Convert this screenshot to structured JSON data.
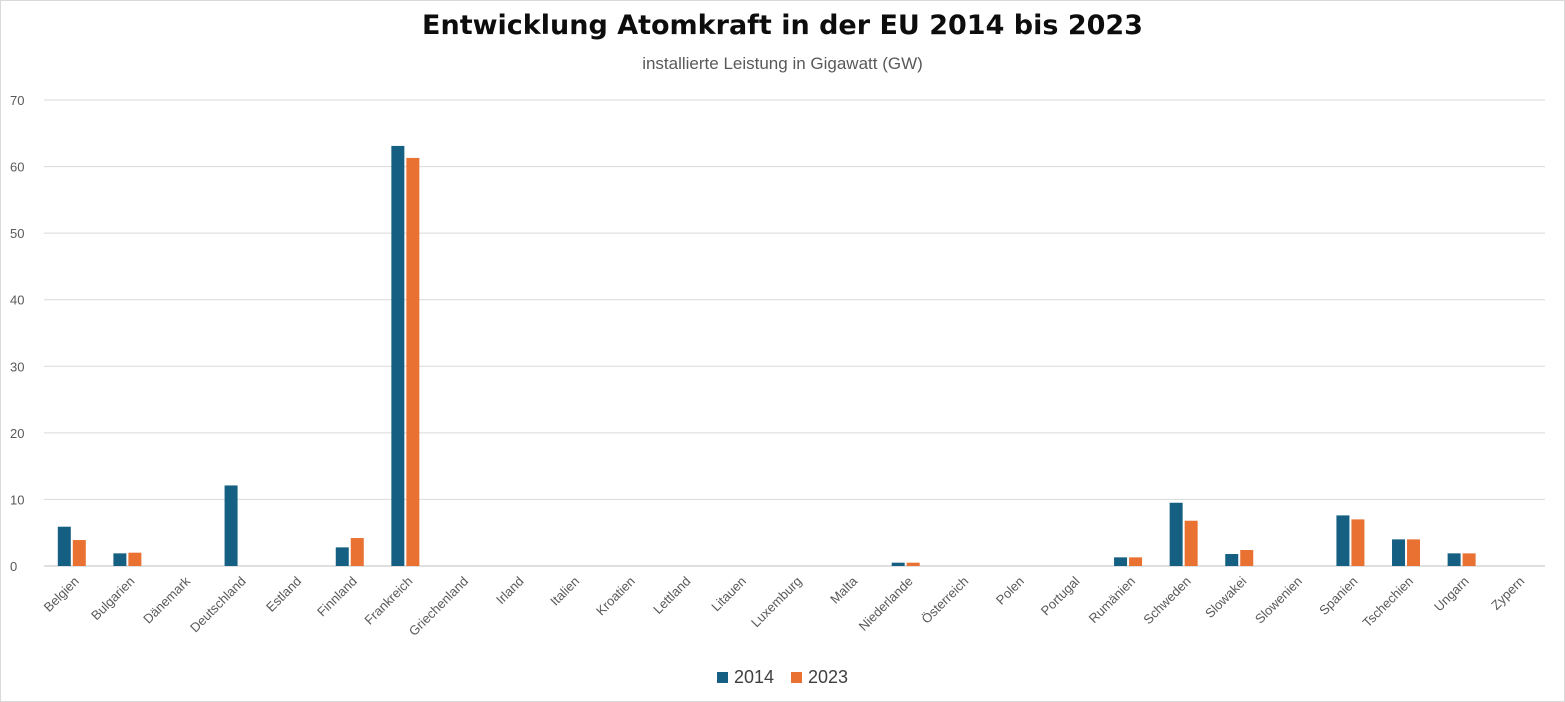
{
  "chart_data": {
    "type": "bar",
    "title": "Entwicklung Atomkraft in der EU 2014 bis 2023",
    "subtitle": "installierte Leistung in Gigawatt (GW)",
    "categories": [
      "Belgien",
      "Bulgarien",
      "Dänemark",
      "Deutschland",
      "Estland",
      "Finnland",
      "Frankreich",
      "Griechenland",
      "Irland",
      "Italien",
      "Kroatien",
      "Lettland",
      "Litauen",
      "Luxemburg",
      "Malta",
      "Niederlande",
      "Österreich",
      "Polen",
      "Portugal",
      "Rumänien",
      "Schweden",
      "Slowakei",
      "Slowenien",
      "Spanien",
      "Tschechien",
      "Ungarn",
      "Zypern"
    ],
    "series": [
      {
        "name": "2014",
        "color": "#156082",
        "values": [
          5.9,
          1.9,
          0,
          12.1,
          0,
          2.8,
          63.1,
          0,
          0,
          0,
          0,
          0,
          0,
          0,
          0,
          0.5,
          0,
          0,
          0,
          1.3,
          9.5,
          1.8,
          0,
          7.6,
          4.0,
          1.9,
          0
        ]
      },
      {
        "name": "2023",
        "color": "#E97132",
        "values": [
          3.9,
          2.0,
          0,
          0,
          0,
          4.2,
          61.3,
          0,
          0,
          0,
          0,
          0,
          0,
          0,
          0,
          0.5,
          0,
          0,
          0,
          1.3,
          6.8,
          2.4,
          0,
          7.0,
          4.0,
          1.9,
          0
        ]
      }
    ],
    "yticks": [
      "0",
      "10",
      "20",
      "30",
      "40",
      "50",
      "60",
      "70"
    ],
    "ylim": [
      0,
      70
    ],
    "grid": true,
    "legend": "bottom"
  }
}
